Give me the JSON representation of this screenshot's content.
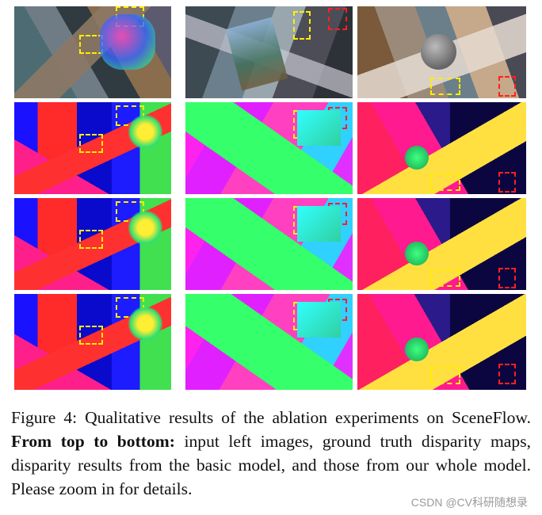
{
  "figure": {
    "label": "Figure 4:",
    "caption_intro": " Qualitative results of the ablation experiments on SceneFlow. ",
    "caption_bold": "From top to bottom:",
    "caption_rest": " input left images, ground truth disparity maps, disparity results from the basic model, and those from our whole model. Please zoom in for details."
  },
  "watermark": "CSDN @CV科研随想录",
  "grid": {
    "rows": [
      "input left images",
      "ground truth disparity maps",
      "disparity results from the basic model",
      "results from our whole model"
    ],
    "colors": {
      "highlight_yellow": "#ffee00",
      "highlight_red": "#ff2020"
    }
  }
}
